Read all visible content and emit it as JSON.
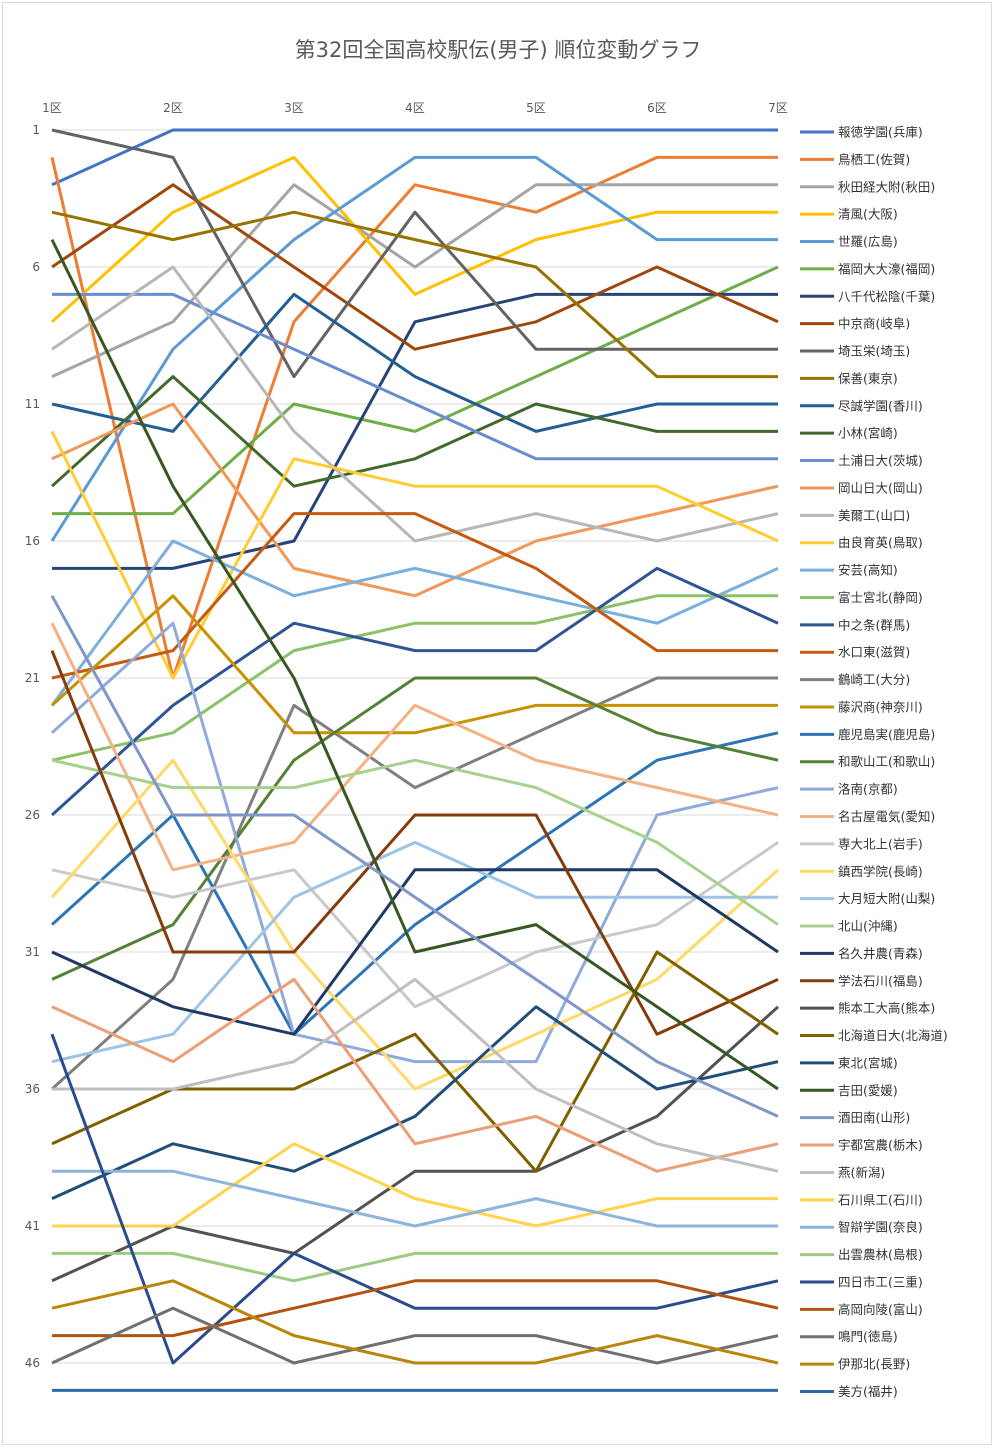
{
  "chart_data": {
    "type": "line",
    "title": "第32回全国高校駅伝(男子) 順位変動グラフ",
    "x": [
      "1区",
      "2区",
      "3区",
      "4区",
      "5区",
      "6区",
      "7区"
    ],
    "y_ticks": [
      "1",
      "6",
      "11",
      "16",
      "21",
      "26",
      "31",
      "36",
      "41",
      "46"
    ],
    "ylim": [
      1,
      47
    ],
    "y_reversed": true,
    "grid": true,
    "legend_position": "right",
    "series": [
      {
        "name": "報徳学園(兵庫)",
        "color": "#4472C4",
        "values": [
          3,
          1,
          1,
          1,
          1,
          1,
          1
        ]
      },
      {
        "name": "鳥栖工(佐賀)",
        "color": "#ED7D31",
        "values": [
          2,
          21,
          8,
          3,
          4,
          2,
          2
        ]
      },
      {
        "name": "秋田経大附(秋田)",
        "color": "#A5A5A5",
        "values": [
          10,
          8,
          3,
          6,
          3,
          3,
          3
        ]
      },
      {
        "name": "清風(大阪)",
        "color": "#FFC000",
        "values": [
          8,
          4,
          2,
          7,
          5,
          4,
          4
        ]
      },
      {
        "name": "世羅(広島)",
        "color": "#5B9BD5",
        "values": [
          16,
          9,
          5,
          2,
          2,
          5,
          5
        ]
      },
      {
        "name": "福岡大大濠(福岡)",
        "color": "#70AD47",
        "values": [
          15,
          15,
          11,
          12,
          10,
          8,
          6
        ]
      },
      {
        "name": "八千代松陰(千葉)",
        "color": "#264478",
        "values": [
          17,
          17,
          16,
          8,
          7,
          7,
          7
        ]
      },
      {
        "name": "中京商(岐阜)",
        "color": "#9E480E",
        "values": [
          6,
          3,
          6,
          9,
          8,
          6,
          8
        ]
      },
      {
        "name": "埼玉栄(埼玉)",
        "color": "#636363",
        "values": [
          1,
          2,
          10,
          4,
          9,
          9,
          9
        ]
      },
      {
        "name": "保善(東京)",
        "color": "#997300",
        "values": [
          4,
          5,
          4,
          5,
          6,
          10,
          10
        ]
      },
      {
        "name": "尽誠学園(香川)",
        "color": "#255E91",
        "values": [
          11,
          12,
          7,
          10,
          12,
          11,
          11
        ]
      },
      {
        "name": "小林(宮崎)",
        "color": "#43682B",
        "values": [
          14,
          10,
          14,
          13,
          11,
          12,
          12
        ]
      },
      {
        "name": "土浦日大(茨城)",
        "color": "#698ED0",
        "values": [
          7,
          7,
          9,
          11,
          13,
          13,
          13
        ]
      },
      {
        "name": "岡山日大(岡山)",
        "color": "#F1975A",
        "values": [
          13,
          11,
          17,
          18,
          16,
          15,
          14
        ]
      },
      {
        "name": "美爾工(山口)",
        "color": "#B7B7B7",
        "values": [
          9,
          6,
          12,
          16,
          15,
          16,
          15
        ]
      },
      {
        "name": "由良育英(鳥取)",
        "color": "#FFCD33",
        "values": [
          12,
          21,
          13,
          14,
          14,
          14,
          16
        ]
      },
      {
        "name": "安芸(高知)",
        "color": "#7CAFDD",
        "values": [
          22,
          16,
          18,
          17,
          18,
          19,
          17
        ]
      },
      {
        "name": "富士宮北(静岡)",
        "color": "#8CC168",
        "values": [
          24,
          23,
          20,
          19,
          19,
          18,
          18
        ]
      },
      {
        "name": "中之条(群馬)",
        "color": "#2F5597",
        "values": [
          26,
          22,
          19,
          20,
          20,
          17,
          19
        ]
      },
      {
        "name": "水口東(滋賀)",
        "color": "#C55A11",
        "values": [
          21,
          20,
          15,
          15,
          17,
          20,
          20
        ]
      },
      {
        "name": "鶴崎工(大分)",
        "color": "#7F7F7F",
        "values": [
          36,
          32,
          22,
          25,
          23,
          21,
          21
        ]
      },
      {
        "name": "藤沢商(神奈川)",
        "color": "#C69200",
        "values": [
          22,
          18,
          23,
          23,
          22,
          22,
          22
        ]
      },
      {
        "name": "鹿児島実(鹿児島)",
        "color": "#2E75B6",
        "values": [
          30,
          26,
          34,
          30,
          27,
          24,
          23
        ]
      },
      {
        "name": "和歌山工(和歌山)",
        "color": "#548235",
        "values": [
          32,
          30,
          24,
          21,
          21,
          23,
          24
        ]
      },
      {
        "name": "洛南(京都)",
        "color": "#8FAADC",
        "values": [
          23,
          19,
          34,
          35,
          35,
          26,
          25
        ]
      },
      {
        "name": "名古屋電気(愛知)",
        "color": "#F4B183",
        "values": [
          19,
          28,
          27,
          22,
          24,
          25,
          26
        ]
      },
      {
        "name": "専大北上(岩手)",
        "color": "#C9C9C9",
        "values": [
          28,
          29,
          28,
          33,
          31,
          30,
          27
        ]
      },
      {
        "name": "鎮西学院(長崎)",
        "color": "#FFD966",
        "values": [
          29,
          24,
          31,
          36,
          34,
          32,
          28
        ]
      },
      {
        "name": "大月短大附(山梨)",
        "color": "#9DC3E6",
        "values": [
          35,
          34,
          29,
          27,
          29,
          29,
          29
        ]
      },
      {
        "name": "北山(沖縄)",
        "color": "#A9D18E",
        "values": [
          24,
          25,
          25,
          24,
          25,
          27,
          30
        ]
      },
      {
        "name": "名久井農(青森)",
        "color": "#203864",
        "values": [
          31,
          33,
          34,
          28,
          28,
          28,
          31
        ]
      },
      {
        "name": "学法石川(福島)",
        "color": "#843C0C",
        "values": [
          20,
          31,
          31,
          26,
          26,
          34,
          32
        ]
      },
      {
        "name": "熊本工大高(熊本)",
        "color": "#525252",
        "values": [
          43,
          41,
          42,
          39,
          39,
          37,
          33
        ]
      },
      {
        "name": "北海道日大(北海道)",
        "color": "#7F6000",
        "values": [
          38,
          36,
          36,
          34,
          39,
          31,
          34
        ]
      },
      {
        "name": "東北(宮城)",
        "color": "#1F4E79",
        "values": [
          40,
          38,
          39,
          37,
          33,
          36,
          35
        ]
      },
      {
        "name": "吉田(愛媛)",
        "color": "#385723",
        "values": [
          5,
          14,
          21,
          31,
          30,
          33,
          36
        ]
      },
      {
        "name": "酒田南(山形)",
        "color": "#7F96C8",
        "values": [
          18,
          26,
          26,
          29,
          32,
          35,
          37
        ]
      },
      {
        "name": "宇都宮農(栃木)",
        "color": "#EC9F76",
        "values": [
          33,
          35,
          32,
          38,
          37,
          39,
          38
        ]
      },
      {
        "name": "燕(新潟)",
        "color": "#BFBFBF",
        "values": [
          36,
          36,
          35,
          32,
          36,
          38,
          39
        ]
      },
      {
        "name": "石川県工(石川)",
        "color": "#FFD34D",
        "values": [
          41,
          41,
          38,
          40,
          41,
          40,
          40
        ]
      },
      {
        "name": "智辯学園(奈良)",
        "color": "#8EB4DE",
        "values": [
          39,
          39,
          40,
          41,
          40,
          41,
          41
        ]
      },
      {
        "name": "出雲農林(島根)",
        "color": "#9CCB7F",
        "values": [
          42,
          42,
          43,
          42,
          42,
          42,
          42
        ]
      },
      {
        "name": "四日市工(三重)",
        "color": "#2B4C8C",
        "values": [
          34,
          46,
          42,
          44,
          44,
          44,
          43
        ]
      },
      {
        "name": "高岡向陵(富山)",
        "color": "#B4520F",
        "values": [
          45,
          45,
          44,
          43,
          43,
          43,
          44
        ]
      },
      {
        "name": "鳴門(徳島)",
        "color": "#707070",
        "values": [
          46,
          44,
          46,
          45,
          45,
          46,
          45
        ]
      },
      {
        "name": "伊那北(長野)",
        "color": "#B8860B",
        "values": [
          44,
          43,
          45,
          46,
          46,
          45,
          46
        ]
      },
      {
        "name": "美方(福井)",
        "color": "#2E6BA4",
        "values": [
          47,
          47,
          47,
          47,
          47,
          47,
          47
        ]
      }
    ]
  }
}
